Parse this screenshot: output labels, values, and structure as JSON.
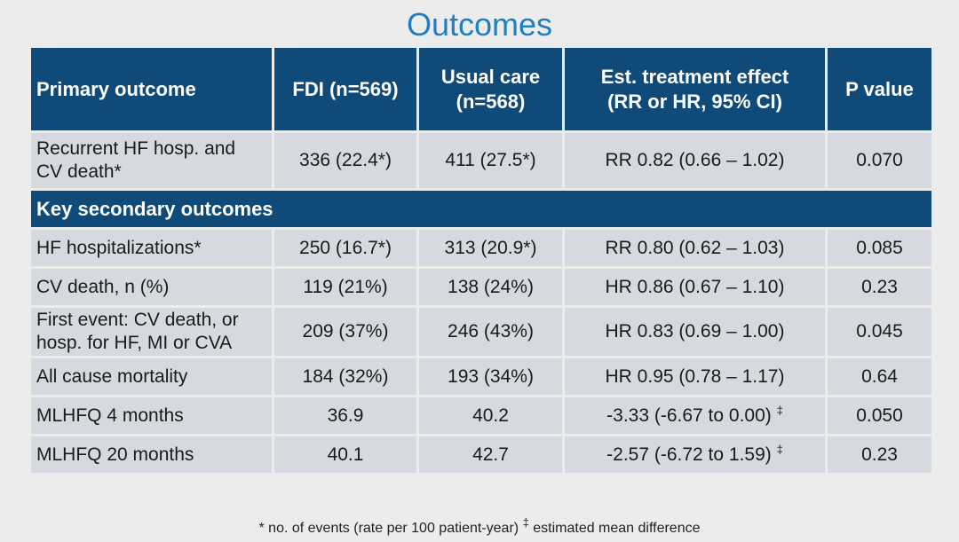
{
  "title": "Outcomes",
  "headers": {
    "col1": "Primary outcome",
    "col2": "FDI (n=569)",
    "col3_line1": "Usual care",
    "col3_line2": "(n=568)",
    "col4_line1": "Est. treatment effect",
    "col4_line2": "(RR or HR, 95% CI)",
    "col5": "P value"
  },
  "primary_row": {
    "outcome_line1": "Recurrent HF hosp. and",
    "outcome_line2": "CV death*",
    "fdi": "336 (22.4*)",
    "usual": "411 (27.5*)",
    "effect": "RR 0.82 (0.66 – 1.02)",
    "p": "0.070"
  },
  "section_label": "Key secondary outcomes",
  "rows": [
    {
      "outcome": "HF hospitalizations*",
      "fdi": "250 (16.7*)",
      "usual": "313 (20.9*)",
      "effect": "RR 0.80 (0.62 – 1.03)",
      "p": "0.085"
    },
    {
      "outcome": "CV death, n (%)",
      "fdi": "119 (21%)",
      "usual": "138 (24%)",
      "effect": "HR 0.86 (0.67 – 1.10)",
      "p": "0.23"
    },
    {
      "outcome_line1": "First event: CV death, or",
      "outcome_line2": "hosp. for HF, MI or CVA",
      "fdi": "209 (37%)",
      "usual": "246 (43%)",
      "effect": "HR 0.83 (0.69 – 1.00)",
      "p": "0.045"
    },
    {
      "outcome": "All cause mortality",
      "fdi": "184 (32%)",
      "usual": "193 (34%)",
      "effect": "HR 0.95 (0.78 – 1.17)",
      "p": "0.64"
    },
    {
      "outcome": "MLHFQ 4 months",
      "fdi": "36.9",
      "usual": "40.2",
      "effect": "-3.33 (-6.67 to 0.00)",
      "effect_mark": "‡",
      "p": "0.050"
    },
    {
      "outcome": "MLHFQ 20 months",
      "fdi": "40.1",
      "usual": "42.7",
      "effect": "-2.57 (-6.72 to 1.59)",
      "effect_mark": "‡",
      "p": "0.23"
    }
  ],
  "footnote_part1": "* no. of events (rate per 100 patient-year) ",
  "footnote_mark": "‡",
  "footnote_part2": " estimated mean difference"
}
